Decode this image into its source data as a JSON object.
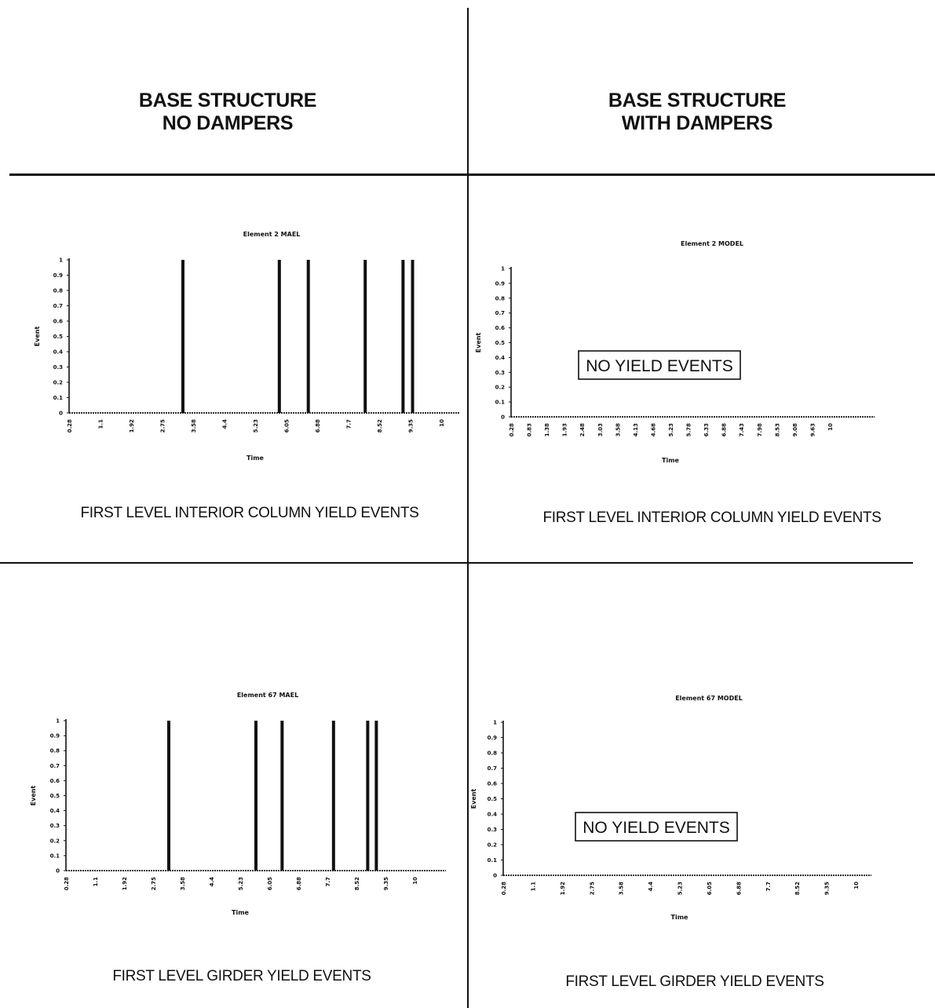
{
  "headers": {
    "left": [
      "BASE STRUCTURE",
      "NO DAMPERS"
    ],
    "right": [
      "BASE STRUCTURE",
      "WITH DAMPERS"
    ]
  },
  "captions": {
    "top_left": "FIRST LEVEL INTERIOR COLUMN YIELD EVENTS",
    "top_right": "FIRST LEVEL INTERIOR COLUMN YIELD EVENTS",
    "bottom_left": "FIRST LEVEL GIRDER YIELD EVENTS",
    "bottom_right": "FIRST LEVEL GIRDER YIELD EVENTS"
  },
  "colors": {
    "ink": "#111111",
    "background": "#ffffff"
  },
  "chart_data": [
    {
      "type": "bar",
      "title": "Element 2 MAEL",
      "xlabel": "Time",
      "ylabel": "Event",
      "ylim": [
        0,
        1
      ],
      "yticks": [
        "0",
        "0.1",
        "0.2",
        "0.3",
        "0.4",
        "0.5",
        "0.6",
        "0.7",
        "0.8",
        "0.9",
        "1"
      ],
      "xtick_labels": [
        "0.28",
        "1.1",
        "1.92",
        "2.75",
        "3.58",
        "4.4",
        "5.23",
        "6.05",
        "6.88",
        "7.7",
        "8.52",
        "9.35",
        "10"
      ],
      "xlim": [
        0.28,
        11.2
      ],
      "events": [
        {
          "time": 3.62,
          "value": 1
        },
        {
          "time": 6.45,
          "value": 1
        },
        {
          "time": 7.3,
          "value": 1
        },
        {
          "time": 8.97,
          "value": 1
        },
        {
          "time": 10.08,
          "value": 1
        },
        {
          "time": 10.36,
          "value": 1
        }
      ],
      "annotation": ""
    },
    {
      "type": "bar",
      "title": "Element 2 MODEL",
      "xlabel": "Time",
      "ylabel": "Event",
      "ylim": [
        0,
        1
      ],
      "yticks": [
        "0",
        "0.1",
        "0.2",
        "0.3",
        "0.4",
        "0.5",
        "0.6",
        "0.7",
        "0.8",
        "0.9",
        "1"
      ],
      "xtick_labels": [
        "0.28",
        "0.83",
        "1.38",
        "1.93",
        "2.48",
        "3.03",
        "3.58",
        "4.13",
        "4.68",
        "5.23",
        "5.78",
        "6.33",
        "6.88",
        "7.43",
        "7.98",
        "8.53",
        "9.08",
        "9.63",
        "10"
      ],
      "xlim": [
        0.28,
        12.5
      ],
      "events": [],
      "annotation": "NO  YIELD  EVENTS"
    },
    {
      "type": "bar",
      "title": "Element 67 MAEL",
      "xlabel": "Time",
      "ylabel": "Event",
      "ylim": [
        0,
        1
      ],
      "yticks": [
        "0",
        "0.1",
        "0.2",
        "0.3",
        "0.4",
        "0.5",
        "0.6",
        "0.7",
        "0.8",
        "0.9",
        "1"
      ],
      "xtick_labels": [
        "0.28",
        "1.1",
        "1.92",
        "2.75",
        "3.58",
        "4.4",
        "5.23",
        "6.05",
        "6.88",
        "7.7",
        "8.52",
        "9.35",
        "10"
      ],
      "xlim": [
        0.28,
        11.6
      ],
      "events": [
        {
          "time": 3.62,
          "value": 1
        },
        {
          "time": 6.45,
          "value": 1
        },
        {
          "time": 7.3,
          "value": 1
        },
        {
          "time": 8.97,
          "value": 1
        },
        {
          "time": 10.08,
          "value": 1
        },
        {
          "time": 10.36,
          "value": 1
        }
      ],
      "annotation": ""
    },
    {
      "type": "bar",
      "title": "Element 67 MODEL",
      "xlabel": "Time",
      "ylabel": "Event",
      "ylim": [
        0,
        1
      ],
      "yticks": [
        "0",
        "0.1",
        "0.2",
        "0.3",
        "0.4",
        "0.5",
        "0.6",
        "0.7",
        "0.8",
        "0.9",
        "1"
      ],
      "xtick_labels": [
        "0.28",
        "1.1",
        "1.92",
        "2.75",
        "3.58",
        "4.4",
        "5.23",
        "6.05",
        "6.88",
        "7.7",
        "8.52",
        "9.35",
        "10"
      ],
      "xlim": [
        0.28,
        11.2
      ],
      "events": [],
      "annotation": "NO  YIELD  EVENTS"
    }
  ]
}
